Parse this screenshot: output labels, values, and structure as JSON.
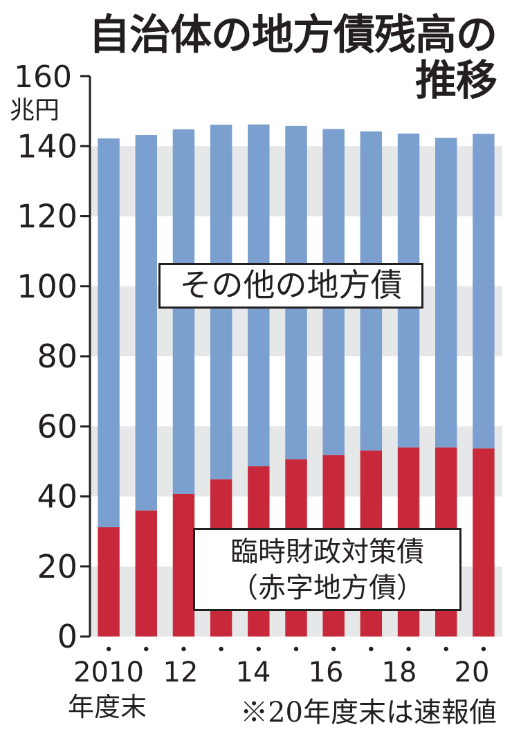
{
  "chart_data": {
    "type": "bar",
    "stacked": true,
    "title": "自治体の地方債残高の推移",
    "title_lines": [
      "自治体の地方債残高の",
      "推移"
    ],
    "unit": [
      "160",
      "兆円"
    ],
    "y_ticks": [
      "0",
      "20",
      "40",
      "60",
      "80",
      "100",
      "120",
      "140"
    ],
    "ylim": [
      0,
      160
    ],
    "x_tick_labels": [
      "2010",
      "12",
      "14",
      "16",
      "18",
      "20"
    ],
    "x_sublabel": "年度末",
    "categories": [
      "2010",
      "2011",
      "2012",
      "2013",
      "2014",
      "2015",
      "2016",
      "2017",
      "2018",
      "2019",
      "2020"
    ],
    "series": [
      {
        "name_lines": [
          "臨時財政対策債",
          "（赤字地方債）"
        ],
        "color": "#c7293a",
        "values": [
          31.2,
          36.0,
          40.7,
          44.9,
          48.6,
          50.6,
          51.8,
          53.1,
          54.0,
          54.0,
          53.7
        ]
      },
      {
        "name": "その他の地方債",
        "color": "#7b9fcf",
        "values": [
          111.0,
          107.2,
          104.1,
          101.2,
          97.6,
          95.2,
          93.1,
          91.1,
          89.6,
          88.4,
          89.8
        ]
      }
    ],
    "grid_bands": true,
    "band_color": "#e6e7e8",
    "note": "※20年度末は速報値"
  }
}
